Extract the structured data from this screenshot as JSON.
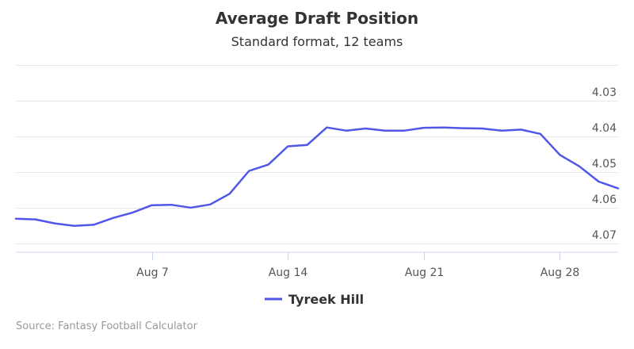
{
  "chart_data": {
    "type": "line",
    "title": "Average Draft Position",
    "subtitle": "Standard format, 12 teams",
    "xlabel": "",
    "ylabel": "",
    "x_tick_labels": [
      "Aug 7",
      "Aug 14",
      "Aug 21",
      "Aug 28"
    ],
    "x_tick_days": [
      7,
      14,
      21,
      28
    ],
    "y_tick_labels": [
      "4.03",
      "4.04",
      "4.05",
      "4.06",
      "4.07"
    ],
    "y_tick_values": [
      4.03,
      4.04,
      4.05,
      4.06,
      4.07
    ],
    "ylim": [
      4.02,
      4.0725
    ],
    "y_reversed": true,
    "xlim_days": [
      0,
      31
    ],
    "grid": true,
    "legend_position": "bottom-center",
    "series": [
      {
        "name": "Tyreek Hill",
        "color": "#5156e8",
        "x_days": [
          0,
          1,
          2,
          3,
          4,
          5,
          6,
          7,
          8,
          9,
          10,
          11,
          12,
          13,
          14,
          15,
          16,
          17,
          18,
          19,
          20,
          21,
          22,
          23,
          24,
          25,
          26,
          27,
          28,
          29,
          30,
          31
        ],
        "values": [
          4.0631,
          4.0633,
          4.0644,
          4.0651,
          4.0648,
          4.0629,
          4.0614,
          4.0593,
          4.0592,
          4.06,
          4.0591,
          4.0561,
          4.0497,
          4.0479,
          4.0428,
          4.0424,
          4.0375,
          4.0384,
          4.0378,
          4.0384,
          4.0384,
          4.0376,
          4.0375,
          4.0377,
          4.0378,
          4.0384,
          4.0381,
          4.0393,
          4.0452,
          4.0484,
          4.0527,
          4.0546
        ]
      }
    ]
  },
  "credits": "Source: Fantasy Football Calculator"
}
